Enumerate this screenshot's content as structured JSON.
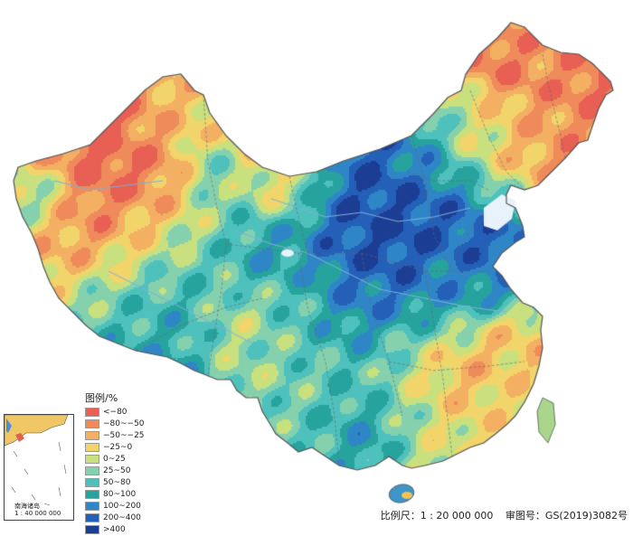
{
  "legend": {
    "title": "图例/%",
    "items": [
      {
        "label": "<−80",
        "color": "#e85f54"
      },
      {
        "label": "−80~−50",
        "color": "#ef8a5a"
      },
      {
        "label": "−50~−25",
        "color": "#f3b063"
      },
      {
        "label": "−25~0",
        "color": "#f1d56a"
      },
      {
        "label": "0~25",
        "color": "#c8e07e"
      },
      {
        "label": "25~50",
        "color": "#86d1ad"
      },
      {
        "label": "50~80",
        "color": "#4fc1bd"
      },
      {
        "label": "80~100",
        "color": "#27a39e"
      },
      {
        "label": "100~200",
        "color": "#2f86c7"
      },
      {
        "label": "200~400",
        "color": "#245fb8"
      },
      {
        "label": ">400",
        "color": "#1c3d94"
      }
    ]
  },
  "inset": {
    "label_line1": "南海诸岛",
    "label_line2": "1 : 40 000 000"
  },
  "footer": {
    "scale": "比例尺：1 : 20 000 000",
    "review_number": "审图号：GS(2019)3082号"
  },
  "colors": {
    "background": "#ffffff",
    "boundary": "#555555",
    "water": "#e8f2fb",
    "river": "#7fb0d8"
  }
}
